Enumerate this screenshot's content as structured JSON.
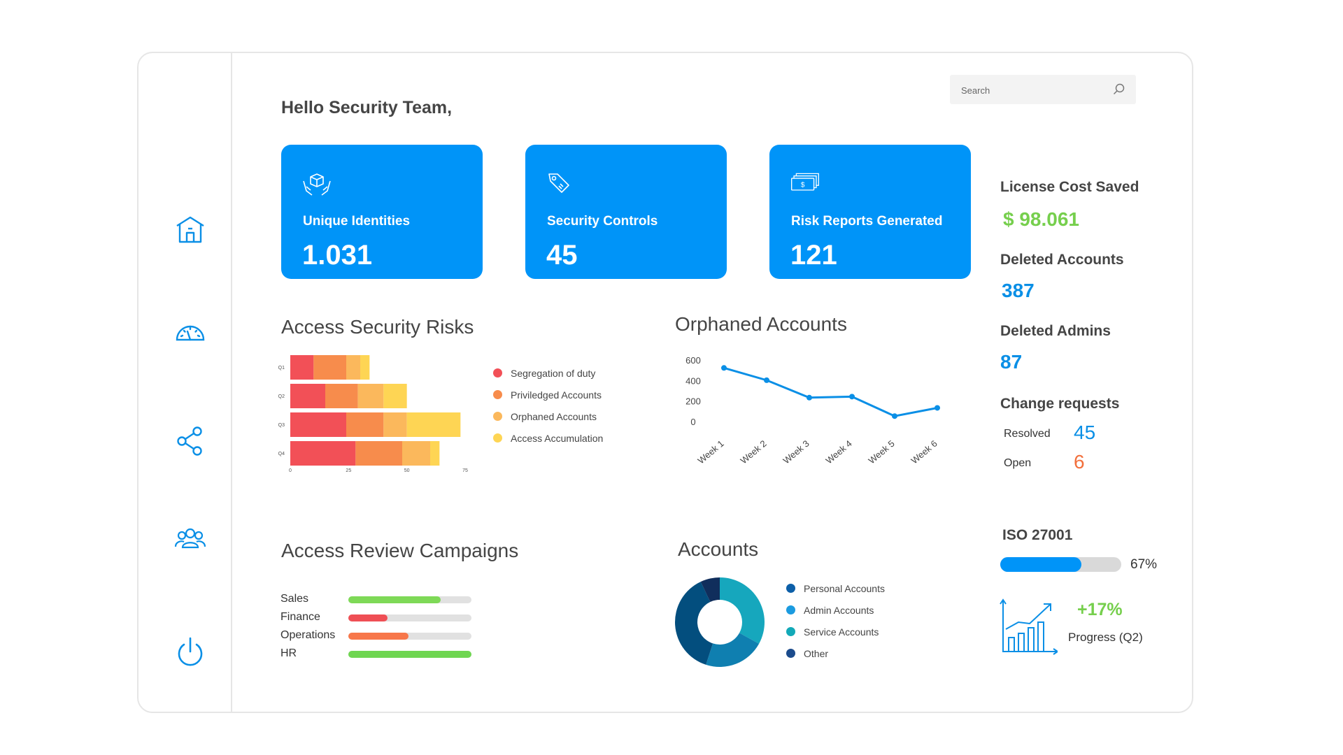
{
  "greeting": "Hello Security Team,",
  "search": {
    "placeholder": "Search"
  },
  "nav": {
    "items": [
      "home",
      "dashboard",
      "share",
      "users",
      "power"
    ]
  },
  "cards": [
    {
      "label": "Unique Identities",
      "value": "1.031",
      "icon": "hands-box-icon"
    },
    {
      "label": "Security Controls",
      "value": "45",
      "icon": "tag-icon"
    },
    {
      "label": "Risk Reports Generated",
      "value": "121",
      "icon": "money-icon"
    }
  ],
  "stats": {
    "license_title": "License Cost Saved",
    "license_value": "$ 98.061",
    "deleted_accounts_title": "Deleted Accounts",
    "deleted_accounts_value": "387",
    "deleted_admins_title": "Deleted Admins",
    "deleted_admins_value": "87",
    "change_requests_title": "Change requests",
    "resolved_label": "Resolved",
    "resolved_value": "45",
    "open_label": "Open",
    "open_value": "6"
  },
  "iso": {
    "title": "ISO 27001",
    "percent_label": "67%",
    "percent": 67,
    "growth": "+17%",
    "progress_label": "Progress (Q2)"
  },
  "colors": {
    "accent": "#0094f8",
    "green": "#76cf4d",
    "orange": "#f2703c",
    "track": "#e1e1e1"
  },
  "campaigns": {
    "title": "Access Review Campaigns",
    "items": [
      {
        "label": "Sales",
        "progress": 0.75,
        "color": "#7ed957"
      },
      {
        "label": "Finance",
        "progress": 0.32,
        "color": "#ef4f55"
      },
      {
        "label": "Operations",
        "progress": 0.49,
        "color": "#f7774a"
      },
      {
        "label": "HR",
        "progress": 1.0,
        "color": "#6fd651"
      }
    ]
  },
  "chart_data": [
    {
      "type": "bar",
      "orientation": "horizontal",
      "stacked": true,
      "title": "Access Security Risks",
      "categories": [
        "Q1",
        "Q2",
        "Q3",
        "Q4"
      ],
      "series": [
        {
          "name": "Segregation of duty",
          "color": "#f25057",
          "values": [
            10,
            15,
            24,
            28
          ]
        },
        {
          "name": "Priviledged Accounts",
          "color": "#f78c4c",
          "values": [
            14,
            14,
            16,
            20
          ]
        },
        {
          "name": "Orphaned Accounts",
          "color": "#fbb85c",
          "values": [
            6,
            11,
            10,
            12
          ]
        },
        {
          "name": "Access Accumulation",
          "color": "#fed554",
          "values": [
            4,
            10,
            23,
            4
          ]
        }
      ],
      "xticks": [
        "0",
        "25",
        "50",
        "75"
      ],
      "xlim": [
        0,
        75
      ],
      "legend": "right"
    },
    {
      "type": "line",
      "title": "Orphaned Accounts",
      "categories": [
        "Week 1",
        "Week 2",
        "Week 3",
        "Week 4",
        "Week 5",
        "Week 6"
      ],
      "series": [
        {
          "color": "#0a8fe6",
          "values": [
            530,
            410,
            240,
            250,
            60,
            140
          ]
        }
      ],
      "yticks": [
        "0",
        "200",
        "400",
        "600"
      ],
      "ylim": [
        0,
        600
      ]
    },
    {
      "type": "pie",
      "donut": true,
      "title": "Accounts",
      "labels": [
        "Personal Accounts",
        "Admin Accounts",
        "Service Accounts",
        "Other"
      ],
      "values": [
        38,
        22,
        33,
        7
      ],
      "colors": [
        "#034e7e",
        "#0f7fb0",
        "#16a7bd",
        "#102e5c"
      ],
      "legend_colors": [
        "#0c5fa8",
        "#1b9be0",
        "#12a9b8",
        "#1b4b8c"
      ],
      "legend": "right"
    }
  ]
}
